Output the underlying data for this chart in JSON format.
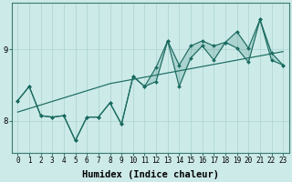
{
  "xlabel": "Humidex (Indice chaleur)",
  "bg_color": "#cceae8",
  "line_color": "#1a6b60",
  "grid_color": "#aad4d0",
  "x_values": [
    0,
    1,
    2,
    3,
    4,
    5,
    6,
    7,
    8,
    9,
    10,
    11,
    12,
    13,
    14,
    15,
    16,
    17,
    18,
    19,
    20,
    21,
    22,
    23
  ],
  "jagged_y": [
    8.28,
    8.48,
    8.07,
    8.05,
    8.07,
    7.72,
    8.05,
    8.05,
    8.25,
    7.95,
    8.62,
    8.48,
    8.55,
    9.12,
    8.48,
    8.88,
    9.05,
    8.85,
    9.1,
    9.02,
    8.82,
    9.42,
    8.85,
    8.78
  ],
  "upper_y": [
    8.28,
    8.48,
    8.07,
    8.05,
    8.07,
    7.72,
    8.05,
    8.05,
    8.25,
    7.95,
    8.62,
    8.48,
    8.75,
    9.12,
    8.78,
    9.05,
    9.12,
    9.05,
    9.1,
    9.25,
    9.02,
    9.42,
    8.95,
    8.78
  ],
  "trend_y": [
    8.12,
    8.17,
    8.22,
    8.27,
    8.32,
    8.37,
    8.42,
    8.47,
    8.52,
    8.55,
    8.58,
    8.61,
    8.64,
    8.67,
    8.7,
    8.73,
    8.76,
    8.79,
    8.82,
    8.85,
    8.88,
    8.91,
    8.94,
    8.97
  ],
  "ylim": [
    7.55,
    9.65
  ],
  "yticks": [
    8,
    9
  ],
  "xticks": [
    0,
    1,
    2,
    3,
    4,
    5,
    6,
    7,
    8,
    9,
    10,
    11,
    12,
    13,
    14,
    15,
    16,
    17,
    18,
    19,
    20,
    21,
    22,
    23
  ],
  "tick_fontsize": 5.5,
  "label_fontsize": 7.5
}
